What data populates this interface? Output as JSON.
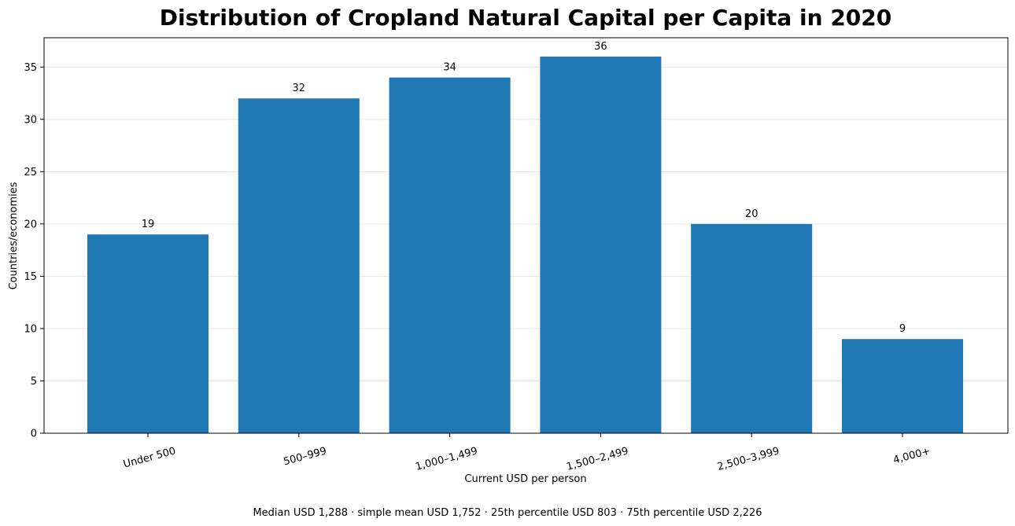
{
  "chart_data": {
    "type": "bar",
    "title": "Distribution of Cropland Natural Capital per Capita in 2020",
    "xlabel": "Current USD per person",
    "ylabel": "Countries/economies",
    "categories": [
      "Under 500",
      "500–999",
      "1,000–1,499",
      "1,500–2,499",
      "2,500–3,999",
      "4,000+"
    ],
    "values": [
      19,
      32,
      34,
      36,
      20,
      9
    ],
    "ylim": [
      0,
      37.8
    ],
    "yticks": [
      0,
      5,
      10,
      15,
      20,
      25,
      30,
      35
    ],
    "grid": "horizontal",
    "bar_color": "#1f77b4",
    "data_labels": [
      "19",
      "32",
      "34",
      "36",
      "20",
      "9"
    ],
    "footnote": "Median USD 1,288 · simple mean USD 1,752 · 25th percentile USD 803 · 75th percentile USD 2,226"
  }
}
